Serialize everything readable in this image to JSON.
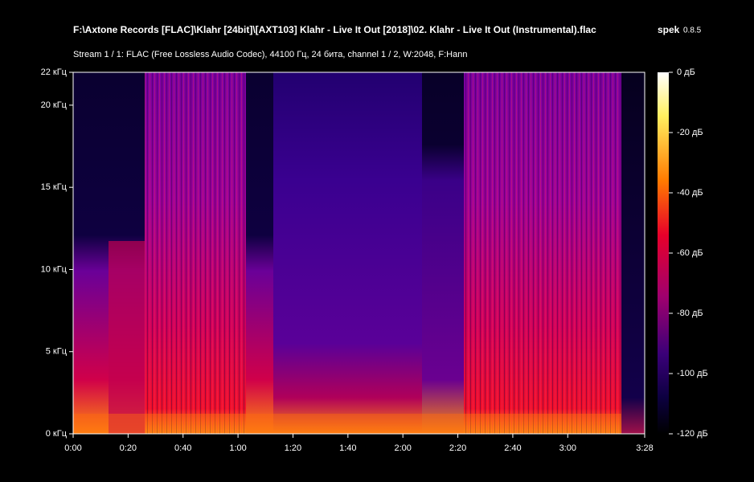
{
  "chart_data": {
    "type": "spectrogram",
    "title": "F:\\Axtone Records [FLAC]\\Klahr [24bit]\\[AXT103] Klahr - Live It Out [2018]\\02. Klahr - Live It Out (Instrumental).flac",
    "app_name": "spek",
    "app_version": "0.8.5",
    "subtitle": "Stream 1 / 1: FLAC (Free Lossless Audio Codec), 44100 Гц, 24 бита, channel 1 / 2, W:2048, F:Hann",
    "xlim": [
      0,
      208
    ],
    "xticks": [
      {
        "value": 0,
        "label": "0:00"
      },
      {
        "value": 20,
        "label": "0:20"
      },
      {
        "value": 40,
        "label": "0:40"
      },
      {
        "value": 60,
        "label": "1:00"
      },
      {
        "value": 80,
        "label": "1:20"
      },
      {
        "value": 100,
        "label": "1:40"
      },
      {
        "value": 120,
        "label": "2:00"
      },
      {
        "value": 140,
        "label": "2:20"
      },
      {
        "value": 160,
        "label": "2:40"
      },
      {
        "value": 180,
        "label": "3:00"
      },
      {
        "value": 208,
        "label": "3:28"
      }
    ],
    "ylim": [
      0,
      22
    ],
    "yticks": [
      {
        "value": 0,
        "label": "0 кГц"
      },
      {
        "value": 5,
        "label": "5 кГц"
      },
      {
        "value": 10,
        "label": "10 кГц"
      },
      {
        "value": 15,
        "label": "15 кГц"
      },
      {
        "value": 20,
        "label": "20 кГц"
      },
      {
        "value": 22,
        "label": "22 кГц"
      }
    ],
    "colorbar_lim": [
      -120,
      0
    ],
    "colorbar_ticks": [
      {
        "value": 0,
        "label": "0 дБ"
      },
      {
        "value": -20,
        "label": "-20 дБ"
      },
      {
        "value": -40,
        "label": "-40 дБ"
      },
      {
        "value": -60,
        "label": "-60 дБ"
      },
      {
        "value": -80,
        "label": "-80 дБ"
      },
      {
        "value": -100,
        "label": "-100 дБ"
      },
      {
        "value": -120,
        "label": "-120 дБ"
      }
    ]
  }
}
